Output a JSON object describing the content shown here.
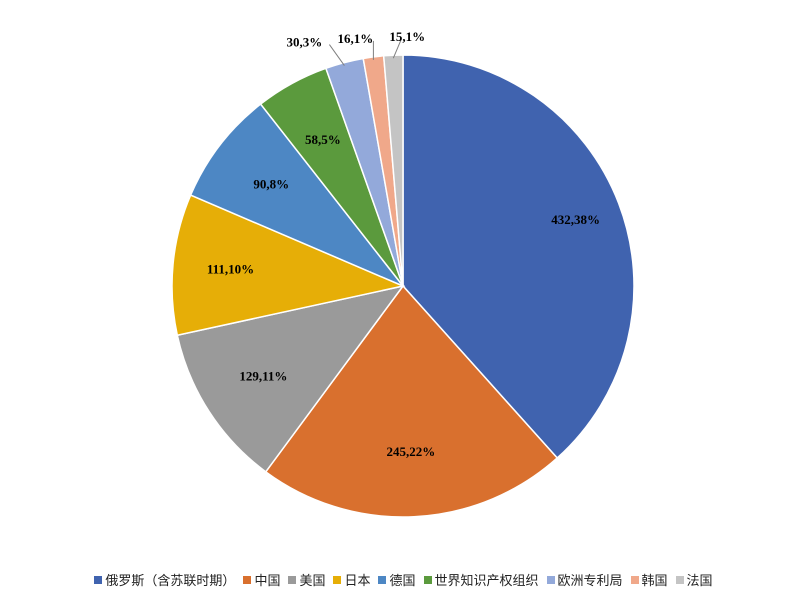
{
  "chart_data": {
    "type": "pie",
    "title": "",
    "start_angle_deg": 0,
    "direction": "clockwise",
    "legend_position": "bottom",
    "slices": [
      {
        "name": "俄罗斯（含苏联时期）",
        "value": 432,
        "percent": 38,
        "label": "432,38%",
        "color": "#4063AF"
      },
      {
        "name": "中国",
        "value": 245,
        "percent": 22,
        "label": "245,22%",
        "color": "#D9702E"
      },
      {
        "name": "美国",
        "value": 129,
        "percent": 11,
        "label": "129,11%",
        "color": "#9A9A9A"
      },
      {
        "name": "日本",
        "value": 111,
        "percent": 10,
        "label": "111,10%",
        "color": "#E6AE07"
      },
      {
        "name": "德国",
        "value": 90,
        "percent": 8,
        "label": "90,8%",
        "color": "#4D87C4"
      },
      {
        "name": "世界知识产权组织",
        "value": 58,
        "percent": 5,
        "label": "58,5%",
        "color": "#5B9A3D"
      },
      {
        "name": "欧洲专利局",
        "value": 30,
        "percent": 3,
        "label": "30,3%",
        "color": "#93A9DA"
      },
      {
        "name": "韩国",
        "value": 16,
        "percent": 1,
        "label": "16,1%",
        "color": "#F0A88A"
      },
      {
        "name": "法国",
        "value": 15,
        "percent": 1,
        "label": "15,1%",
        "color": "#C4C4C4"
      }
    ]
  }
}
